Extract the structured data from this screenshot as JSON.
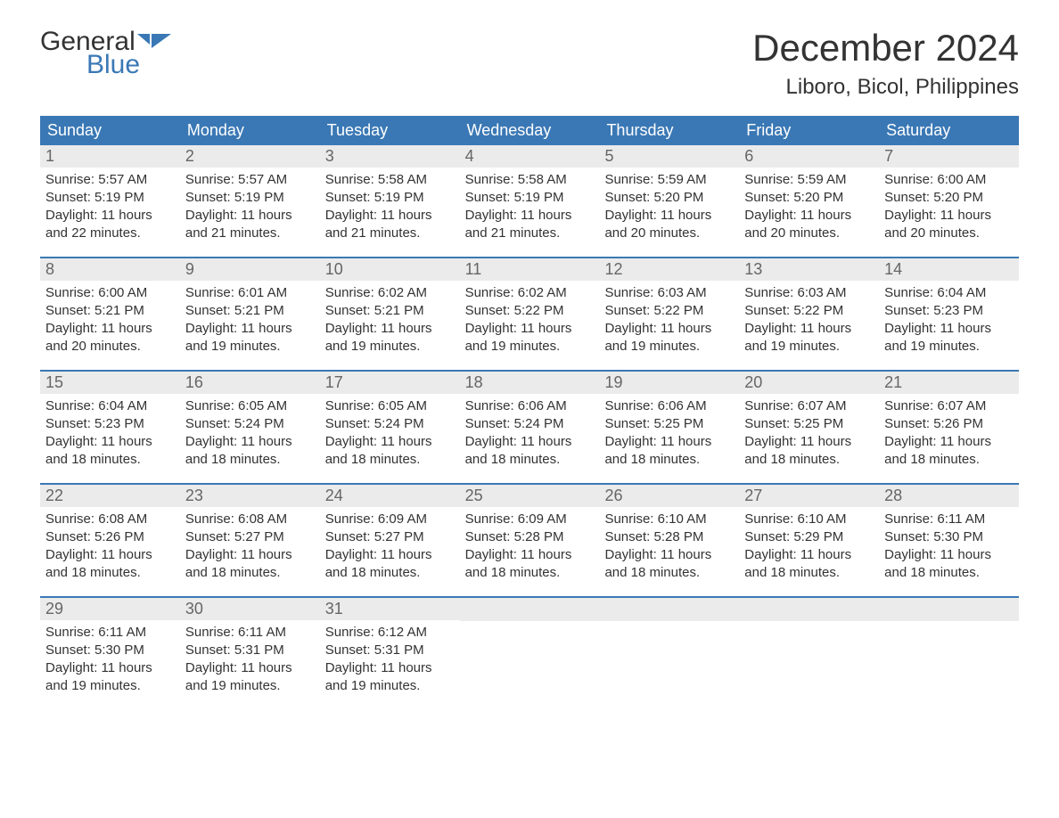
{
  "logo": {
    "word1": "General",
    "word2": "Blue"
  },
  "title": "December 2024",
  "location": "Liboro, Bicol, Philippines",
  "colors": {
    "header_bg": "#3a78b5",
    "header_text": "#ffffff",
    "daynum_bg": "#ebebeb",
    "daynum_text": "#666666",
    "body_text": "#333333",
    "accent": "#3a78b5",
    "page_bg": "#ffffff"
  },
  "day_names": [
    "Sunday",
    "Monday",
    "Tuesday",
    "Wednesday",
    "Thursday",
    "Friday",
    "Saturday"
  ],
  "weeks": [
    [
      {
        "n": "1",
        "sr": "Sunrise: 5:57 AM",
        "ss": "Sunset: 5:19 PM",
        "dl": "Daylight: 11 hours and 22 minutes."
      },
      {
        "n": "2",
        "sr": "Sunrise: 5:57 AM",
        "ss": "Sunset: 5:19 PM",
        "dl": "Daylight: 11 hours and 21 minutes."
      },
      {
        "n": "3",
        "sr": "Sunrise: 5:58 AM",
        "ss": "Sunset: 5:19 PM",
        "dl": "Daylight: 11 hours and 21 minutes."
      },
      {
        "n": "4",
        "sr": "Sunrise: 5:58 AM",
        "ss": "Sunset: 5:19 PM",
        "dl": "Daylight: 11 hours and 21 minutes."
      },
      {
        "n": "5",
        "sr": "Sunrise: 5:59 AM",
        "ss": "Sunset: 5:20 PM",
        "dl": "Daylight: 11 hours and 20 minutes."
      },
      {
        "n": "6",
        "sr": "Sunrise: 5:59 AM",
        "ss": "Sunset: 5:20 PM",
        "dl": "Daylight: 11 hours and 20 minutes."
      },
      {
        "n": "7",
        "sr": "Sunrise: 6:00 AM",
        "ss": "Sunset: 5:20 PM",
        "dl": "Daylight: 11 hours and 20 minutes."
      }
    ],
    [
      {
        "n": "8",
        "sr": "Sunrise: 6:00 AM",
        "ss": "Sunset: 5:21 PM",
        "dl": "Daylight: 11 hours and 20 minutes."
      },
      {
        "n": "9",
        "sr": "Sunrise: 6:01 AM",
        "ss": "Sunset: 5:21 PM",
        "dl": "Daylight: 11 hours and 19 minutes."
      },
      {
        "n": "10",
        "sr": "Sunrise: 6:02 AM",
        "ss": "Sunset: 5:21 PM",
        "dl": "Daylight: 11 hours and 19 minutes."
      },
      {
        "n": "11",
        "sr": "Sunrise: 6:02 AM",
        "ss": "Sunset: 5:22 PM",
        "dl": "Daylight: 11 hours and 19 minutes."
      },
      {
        "n": "12",
        "sr": "Sunrise: 6:03 AM",
        "ss": "Sunset: 5:22 PM",
        "dl": "Daylight: 11 hours and 19 minutes."
      },
      {
        "n": "13",
        "sr": "Sunrise: 6:03 AM",
        "ss": "Sunset: 5:22 PM",
        "dl": "Daylight: 11 hours and 19 minutes."
      },
      {
        "n": "14",
        "sr": "Sunrise: 6:04 AM",
        "ss": "Sunset: 5:23 PM",
        "dl": "Daylight: 11 hours and 19 minutes."
      }
    ],
    [
      {
        "n": "15",
        "sr": "Sunrise: 6:04 AM",
        "ss": "Sunset: 5:23 PM",
        "dl": "Daylight: 11 hours and 18 minutes."
      },
      {
        "n": "16",
        "sr": "Sunrise: 6:05 AM",
        "ss": "Sunset: 5:24 PM",
        "dl": "Daylight: 11 hours and 18 minutes."
      },
      {
        "n": "17",
        "sr": "Sunrise: 6:05 AM",
        "ss": "Sunset: 5:24 PM",
        "dl": "Daylight: 11 hours and 18 minutes."
      },
      {
        "n": "18",
        "sr": "Sunrise: 6:06 AM",
        "ss": "Sunset: 5:24 PM",
        "dl": "Daylight: 11 hours and 18 minutes."
      },
      {
        "n": "19",
        "sr": "Sunrise: 6:06 AM",
        "ss": "Sunset: 5:25 PM",
        "dl": "Daylight: 11 hours and 18 minutes."
      },
      {
        "n": "20",
        "sr": "Sunrise: 6:07 AM",
        "ss": "Sunset: 5:25 PM",
        "dl": "Daylight: 11 hours and 18 minutes."
      },
      {
        "n": "21",
        "sr": "Sunrise: 6:07 AM",
        "ss": "Sunset: 5:26 PM",
        "dl": "Daylight: 11 hours and 18 minutes."
      }
    ],
    [
      {
        "n": "22",
        "sr": "Sunrise: 6:08 AM",
        "ss": "Sunset: 5:26 PM",
        "dl": "Daylight: 11 hours and 18 minutes."
      },
      {
        "n": "23",
        "sr": "Sunrise: 6:08 AM",
        "ss": "Sunset: 5:27 PM",
        "dl": "Daylight: 11 hours and 18 minutes."
      },
      {
        "n": "24",
        "sr": "Sunrise: 6:09 AM",
        "ss": "Sunset: 5:27 PM",
        "dl": "Daylight: 11 hours and 18 minutes."
      },
      {
        "n": "25",
        "sr": "Sunrise: 6:09 AM",
        "ss": "Sunset: 5:28 PM",
        "dl": "Daylight: 11 hours and 18 minutes."
      },
      {
        "n": "26",
        "sr": "Sunrise: 6:10 AM",
        "ss": "Sunset: 5:28 PM",
        "dl": "Daylight: 11 hours and 18 minutes."
      },
      {
        "n": "27",
        "sr": "Sunrise: 6:10 AM",
        "ss": "Sunset: 5:29 PM",
        "dl": "Daylight: 11 hours and 18 minutes."
      },
      {
        "n": "28",
        "sr": "Sunrise: 6:11 AM",
        "ss": "Sunset: 5:30 PM",
        "dl": "Daylight: 11 hours and 18 minutes."
      }
    ],
    [
      {
        "n": "29",
        "sr": "Sunrise: 6:11 AM",
        "ss": "Sunset: 5:30 PM",
        "dl": "Daylight: 11 hours and 19 minutes."
      },
      {
        "n": "30",
        "sr": "Sunrise: 6:11 AM",
        "ss": "Sunset: 5:31 PM",
        "dl": "Daylight: 11 hours and 19 minutes."
      },
      {
        "n": "31",
        "sr": "Sunrise: 6:12 AM",
        "ss": "Sunset: 5:31 PM",
        "dl": "Daylight: 11 hours and 19 minutes."
      },
      {
        "n": "",
        "sr": "",
        "ss": "",
        "dl": ""
      },
      {
        "n": "",
        "sr": "",
        "ss": "",
        "dl": ""
      },
      {
        "n": "",
        "sr": "",
        "ss": "",
        "dl": ""
      },
      {
        "n": "",
        "sr": "",
        "ss": "",
        "dl": ""
      }
    ]
  ]
}
